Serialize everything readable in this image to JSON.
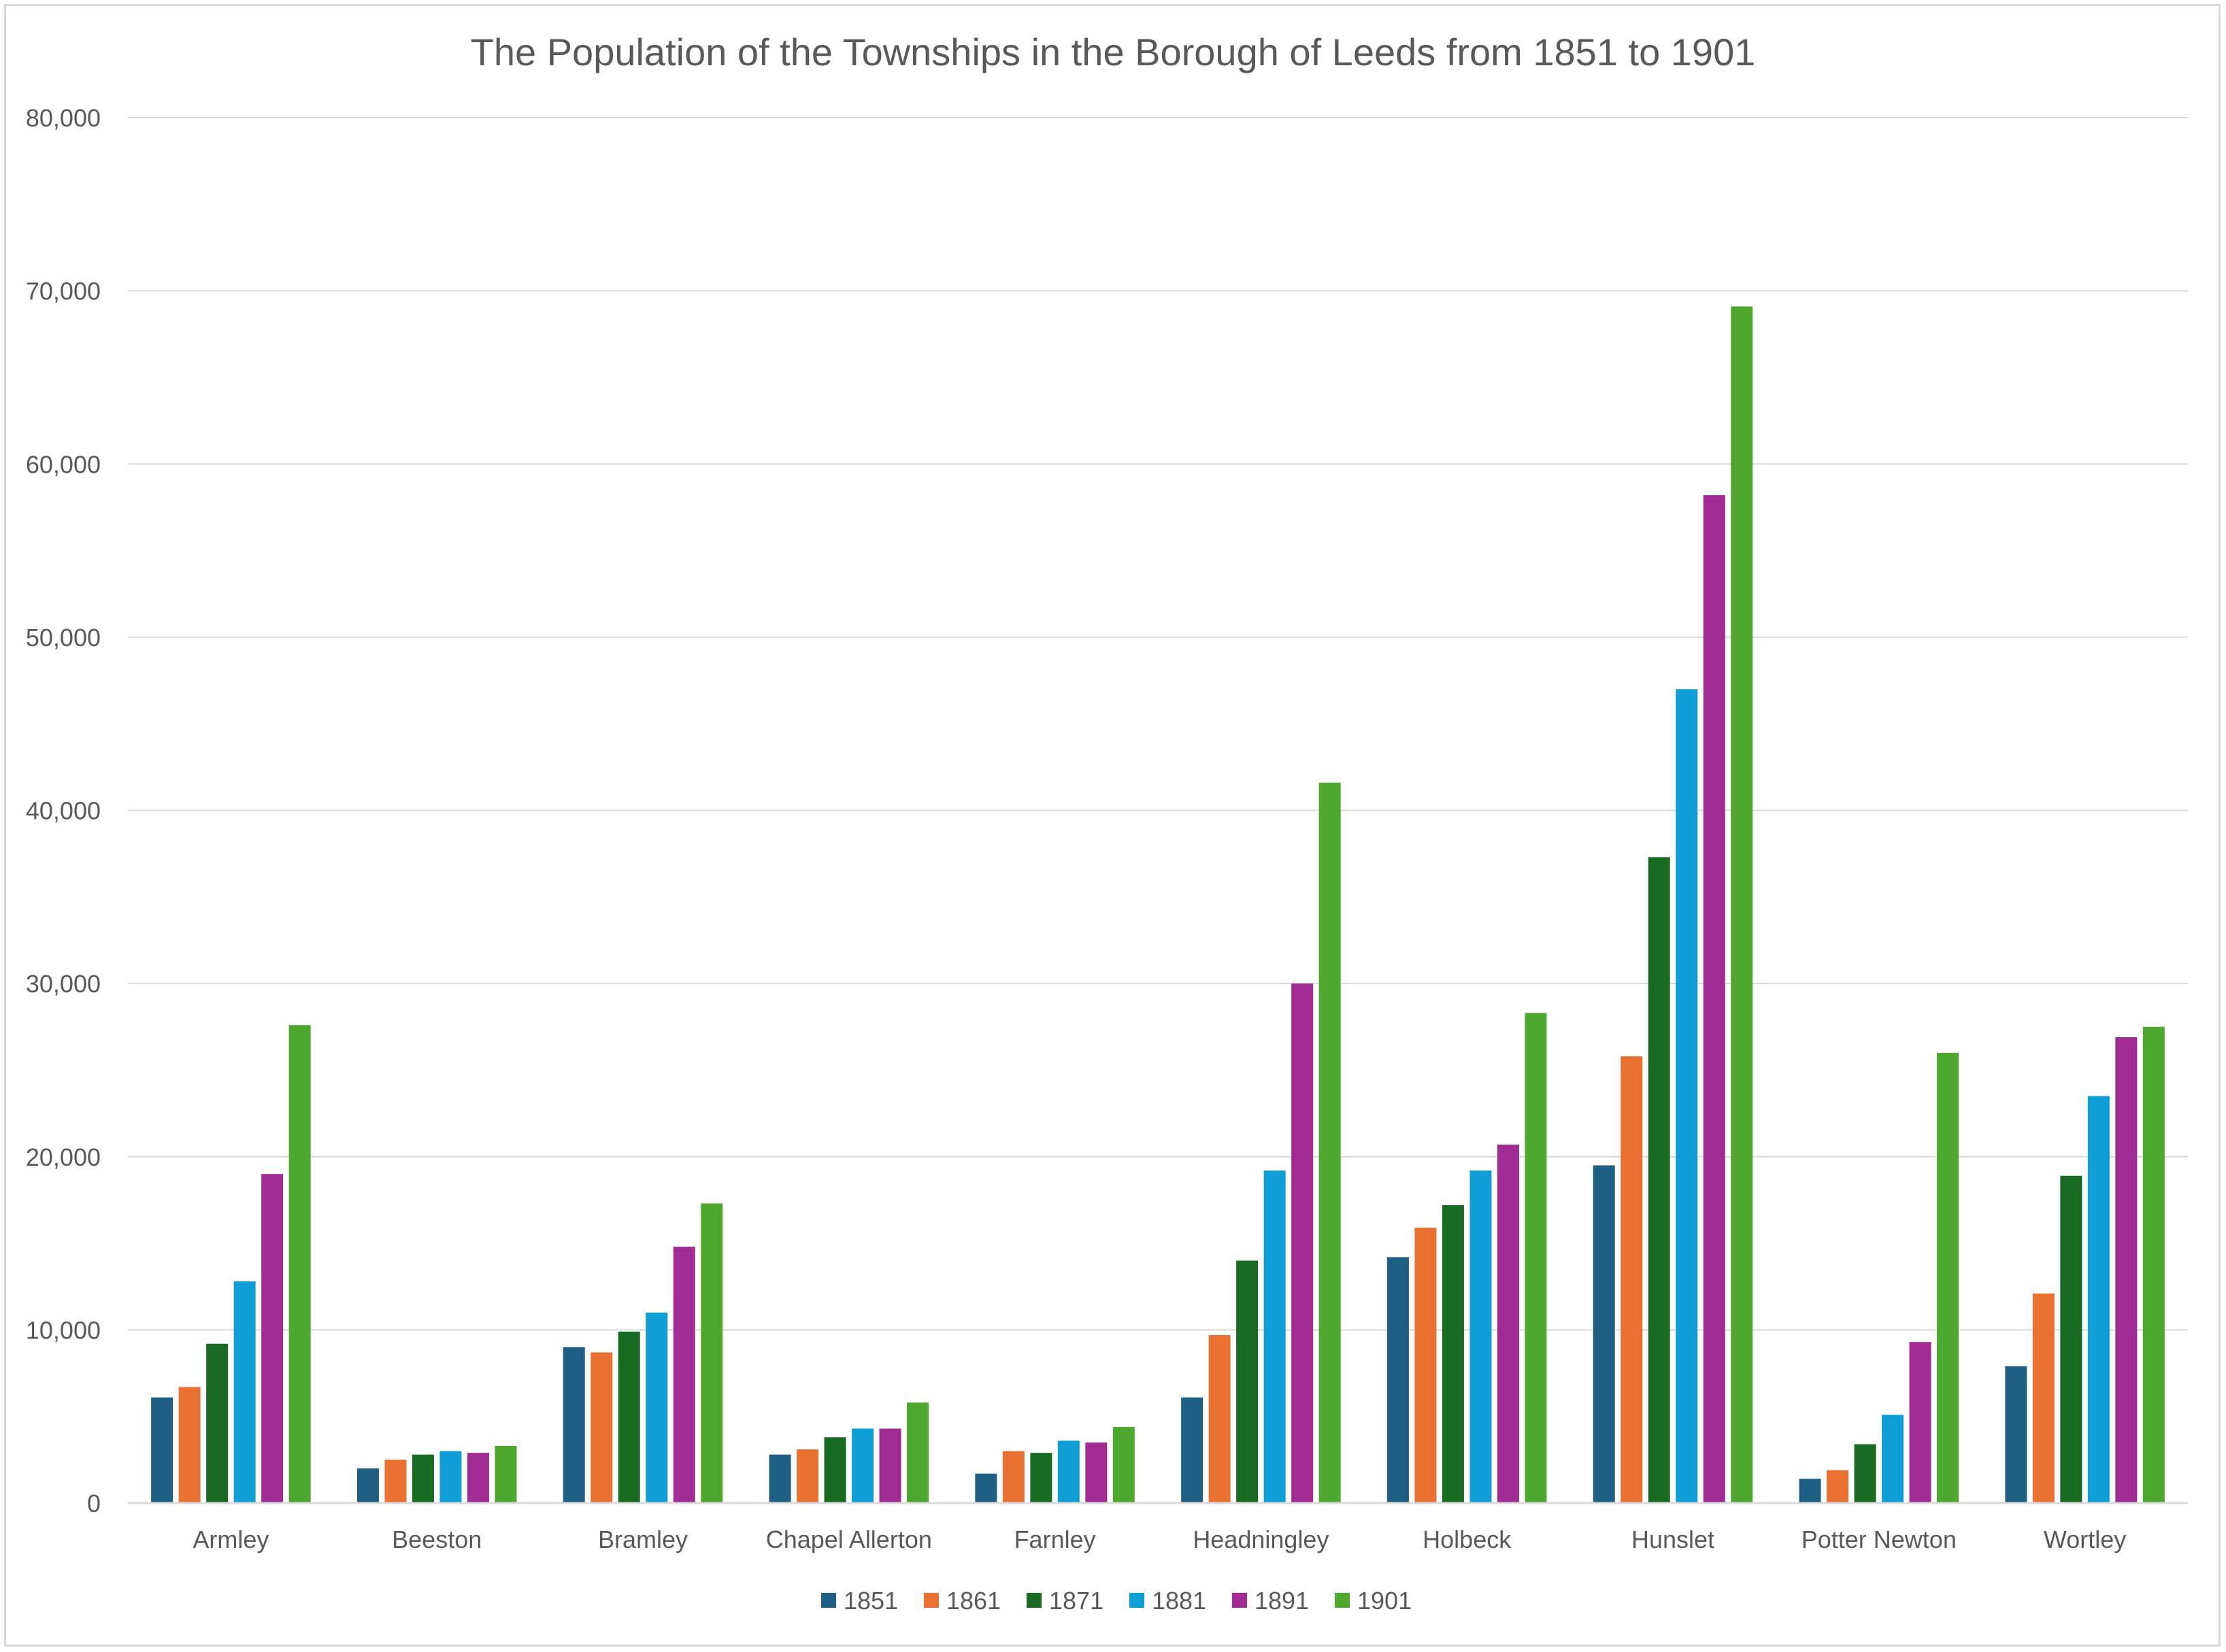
{
  "chart_data": {
    "type": "bar",
    "title": "The  Population of  the Townships in the Borough of Leeds from 1851 to 1901",
    "xlabel": "",
    "ylabel": "",
    "ylim": [
      0,
      80000
    ],
    "grid": true,
    "legend_position": "bottom",
    "y_ticks": [
      0,
      10000,
      20000,
      30000,
      40000,
      50000,
      60000,
      70000,
      80000
    ],
    "y_tick_labels": [
      "0",
      "10,000",
      "20,000",
      "30,000",
      "40,000",
      "50,000",
      "60,000",
      "70,000",
      "80,000"
    ],
    "categories": [
      "Armley",
      "Beeston",
      "Bramley",
      "Chapel Allerton",
      "Farnley",
      "Headningley",
      "Holbeck",
      "Hunslet",
      "Potter Newton",
      "Wortley"
    ],
    "series": [
      {
        "name": "1851",
        "color": "#1f5f84",
        "values": [
          6100,
          2000,
          9000,
          2800,
          1700,
          6100,
          14200,
          19500,
          1400,
          7900
        ]
      },
      {
        "name": "1861",
        "color": "#e97132",
        "values": [
          6700,
          2500,
          8700,
          3100,
          3000,
          9700,
          15900,
          25800,
          1900,
          12100
        ]
      },
      {
        "name": "1871",
        "color": "#196b24",
        "values": [
          9200,
          2800,
          9900,
          3800,
          2900,
          14000,
          17200,
          37300,
          3400,
          18900
        ]
      },
      {
        "name": "1881",
        "color": "#0f9ed5",
        "values": [
          12800,
          3000,
          11000,
          4300,
          3600,
          19200,
          19200,
          47000,
          5100,
          23500
        ]
      },
      {
        "name": "1891",
        "color": "#a02b93",
        "values": [
          19000,
          2900,
          14800,
          4300,
          3500,
          30000,
          20700,
          58200,
          9300,
          26900
        ]
      },
      {
        "name": "1901",
        "color": "#4ea72e",
        "values": [
          27600,
          3300,
          17300,
          5800,
          4400,
          41600,
          28300,
          69100,
          26000,
          27500
        ]
      }
    ]
  }
}
